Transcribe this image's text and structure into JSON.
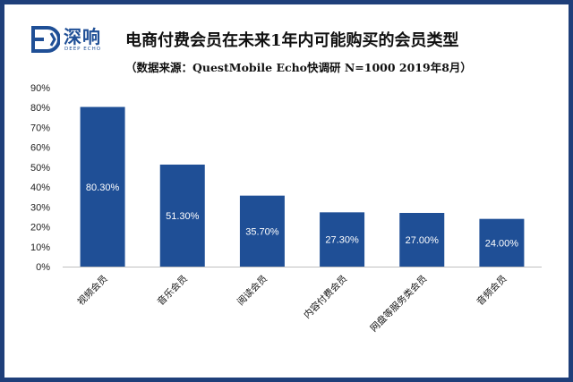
{
  "logo": {
    "name": "深响",
    "sub": "DEEP ECHO"
  },
  "chart_data": {
    "type": "bar",
    "title": "电商付费会员在未来1年内可能购买的会员类型",
    "subtitle": "（数据来源：QuestMobile Echo快调研 N=1000 2019年8月）",
    "categories": [
      "视频会员",
      "音乐会员",
      "阅读会员",
      "内容付费会员",
      "网盘等服务类会员",
      "音频会员"
    ],
    "values": [
      80.3,
      51.3,
      35.7,
      27.3,
      27.0,
      24.0
    ],
    "data_labels": [
      "80.30%",
      "51.30%",
      "35.70%",
      "27.30%",
      "27.00%",
      "24.00%"
    ],
    "yticks": [
      "0%",
      "10%",
      "20%",
      "30%",
      "40%",
      "50%",
      "60%",
      "70%",
      "80%",
      "90%"
    ],
    "ylim": [
      0,
      90
    ],
    "xlabel": "",
    "ylabel": "",
    "grid": false,
    "bar_color": "#1f4f96"
  }
}
